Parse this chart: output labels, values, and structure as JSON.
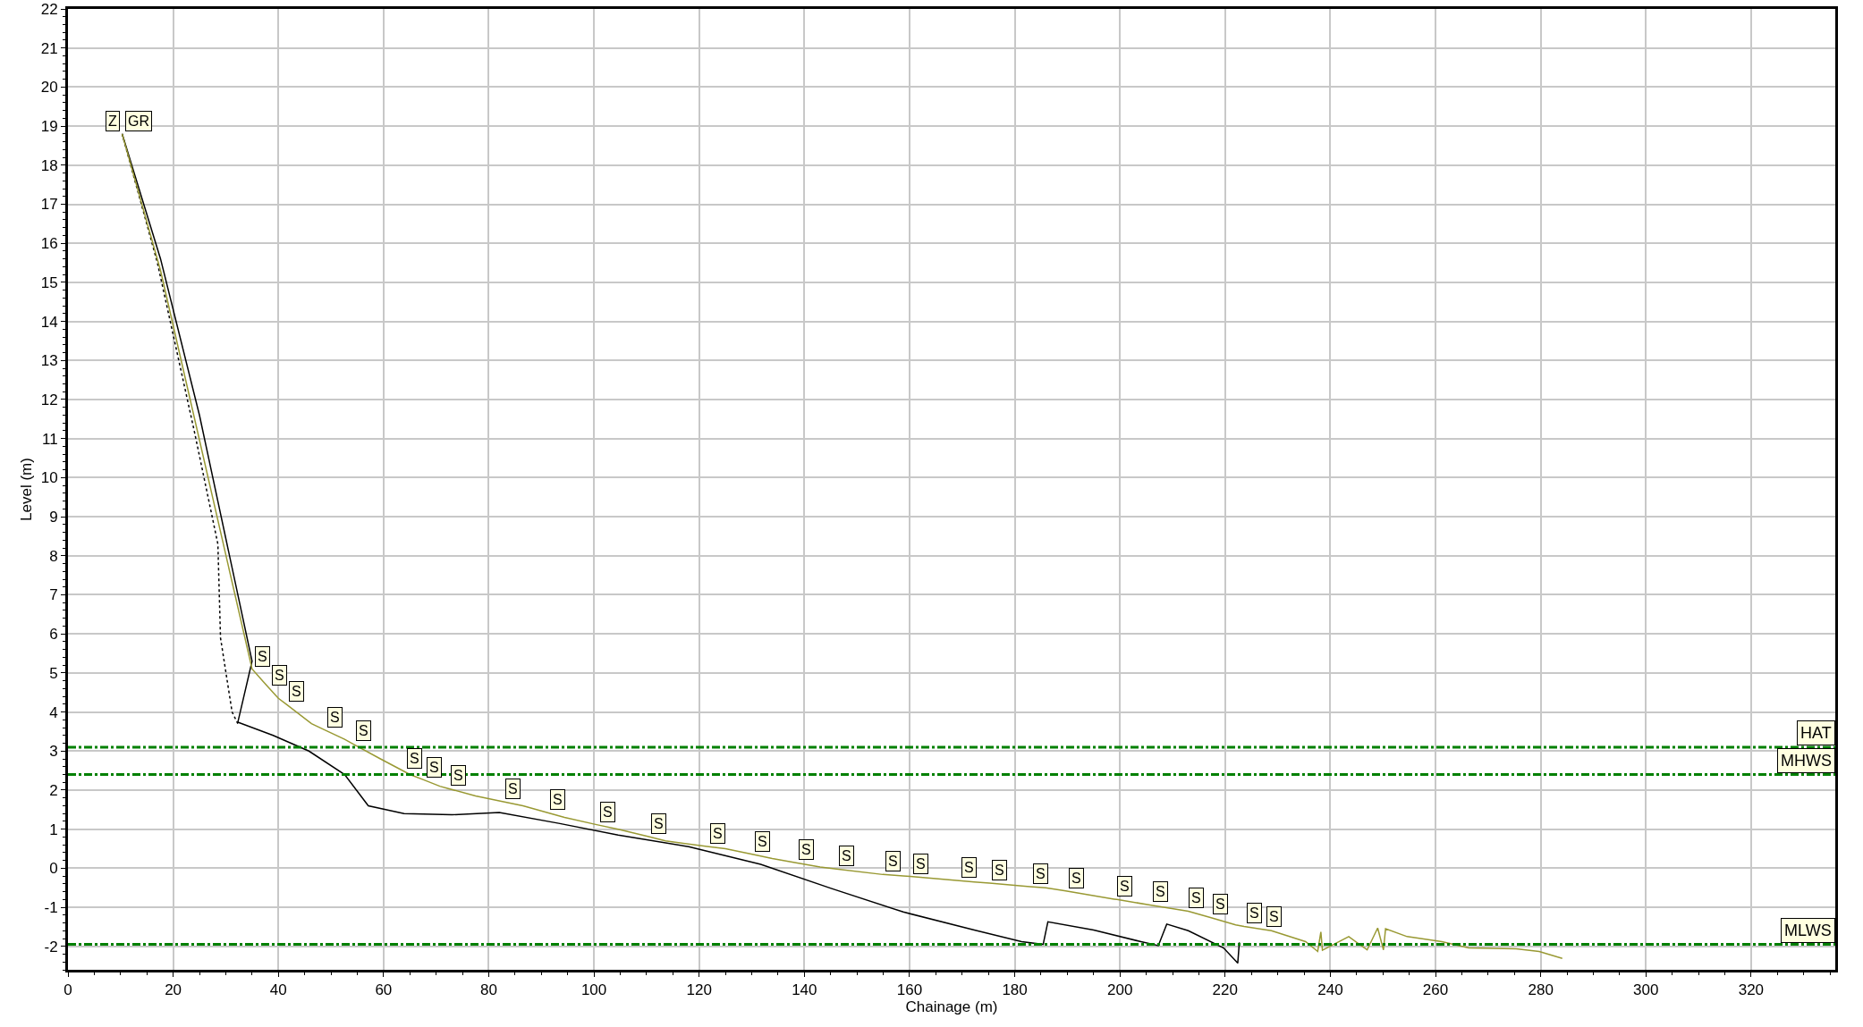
{
  "chart_data": {
    "type": "line",
    "xlabel": "Chainage (m)",
    "ylabel": "Level (m)",
    "xlim": [
      0,
      336
    ],
    "xticks": [
      0,
      20,
      40,
      60,
      80,
      100,
      120,
      140,
      160,
      180,
      200,
      220,
      240,
      260,
      280,
      300,
      320
    ],
    "ylim": [
      -2.6,
      22
    ],
    "yticks": [
      -2,
      -1,
      0,
      1,
      2,
      3,
      4,
      5,
      6,
      7,
      8,
      9,
      10,
      11,
      12,
      13,
      14,
      15,
      16,
      17,
      18,
      19,
      20,
      21,
      22
    ],
    "grid": true,
    "marker": "none",
    "series": [
      {
        "color": "#000000",
        "line_style": "dotted",
        "x": [
          10.3,
          17,
          24,
          28.5,
          29,
          31.2,
          32.3
        ],
        "values": [
          18.8,
          15.5,
          11.2,
          8.3,
          5.9,
          4.0,
          3.7
        ]
      },
      {
        "color": "#000000",
        "line_style": "solid",
        "x": [
          10.3,
          17.6,
          25,
          35,
          32.3,
          39,
          45.8,
          52.6,
          57.1,
          63.9,
          73,
          82,
          93.3,
          104.6,
          118,
          131.7,
          145.2,
          158.8,
          172.3,
          181.3,
          185.4,
          186.3,
          195,
          204,
          207.3,
          208.9,
          213,
          219.7,
          222.4,
          222.7
        ],
        "values": [
          18.8,
          15.6,
          11.6,
          5.3,
          3.74,
          3.4,
          3.0,
          2.4,
          1.6,
          1.4,
          1.37,
          1.43,
          1.15,
          0.85,
          0.55,
          0.1,
          -0.52,
          -1.12,
          -1.58,
          -1.88,
          -1.95,
          -1.37,
          -1.58,
          -1.88,
          -1.98,
          -1.43,
          -1.6,
          -2.04,
          -2.43,
          -1.9
        ]
      },
      {
        "color": "#999933",
        "line_style": "solid",
        "x": [
          10.3,
          17.6,
          35,
          38.3,
          40,
          41.5,
          46.3,
          48.8,
          52.6,
          54.2,
          59.4,
          63.9,
          65,
          67.7,
          70.7,
          72.3,
          77.5,
          82.6,
          86.5,
          91.2,
          94.4,
          100.7,
          104.6,
          110.4,
          113.6,
          121.5,
          125,
          130.1,
          133.9,
          138.4,
          143,
          146.1,
          154.9,
          158.8,
          160.1,
          169.4,
          172.3,
          175.2,
          182.9,
          185.9,
          189.7,
          198.9,
          199.4,
          205.7,
          212.5,
          213,
          217.2,
          222,
          223.6,
          227.4,
          228.8,
          235.3,
          237.6,
          238.2,
          238.5,
          243.5,
          247,
          249,
          250.1,
          250.5,
          254.6,
          261.2,
          266.3,
          275.3,
          279.7,
          284.1
        ],
        "values": [
          18.8,
          15.3,
          5.1,
          4.6,
          4.35,
          4.2,
          3.7,
          3.54,
          3.3,
          3.18,
          2.8,
          2.48,
          2.4,
          2.26,
          2.1,
          2.04,
          1.85,
          1.71,
          1.6,
          1.42,
          1.3,
          1.11,
          1.0,
          0.81,
          0.7,
          0.56,
          0.5,
          0.36,
          0.25,
          0.14,
          0.03,
          -0.02,
          -0.16,
          -0.2,
          -0.21,
          -0.32,
          -0.35,
          -0.38,
          -0.47,
          -0.5,
          -0.58,
          -0.79,
          -0.8,
          -0.94,
          -1.09,
          -1.1,
          -1.26,
          -1.45,
          -1.49,
          -1.57,
          -1.6,
          -1.88,
          -2.13,
          -1.63,
          -2.1,
          -1.75,
          -2.09,
          -1.53,
          -2.09,
          -1.55,
          -1.75,
          -1.88,
          -2.04,
          -2.06,
          -2.13,
          -2.31
        ]
      }
    ],
    "ref_lines": [
      {
        "axis": "y",
        "value": 3.1,
        "label": "HAT",
        "color": "#008000",
        "line_style": "dashed"
      },
      {
        "axis": "y",
        "value": 2.4,
        "label": "MHWS",
        "color": "#008000",
        "line_style": "dashed"
      },
      {
        "axis": "y",
        "value": -1.95,
        "label": "MLWS",
        "color": "#008000",
        "line_style": "dashed"
      }
    ],
    "annotations": [
      {
        "text": "Z",
        "x": 10.3,
        "y": 18.8
      },
      {
        "text": "GR",
        "x": 10.3,
        "y": 18.8
      },
      {
        "text": "S",
        "x": 35,
        "y": 5.1
      },
      {
        "text": "S",
        "x": 38.3,
        "y": 4.6
      },
      {
        "text": "S",
        "x": 41.5,
        "y": 4.2
      },
      {
        "text": "S",
        "x": 48.8,
        "y": 3.54
      },
      {
        "text": "S",
        "x": 54.2,
        "y": 3.18
      },
      {
        "text": "S",
        "x": 63.9,
        "y": 2.48
      },
      {
        "text": "S",
        "x": 67.7,
        "y": 2.26
      },
      {
        "text": "S",
        "x": 72.3,
        "y": 2.04
      },
      {
        "text": "S",
        "x": 82.6,
        "y": 1.71
      },
      {
        "text": "S",
        "x": 91.2,
        "y": 1.42
      },
      {
        "text": "S",
        "x": 100.7,
        "y": 1.11
      },
      {
        "text": "S",
        "x": 110.4,
        "y": 0.81
      },
      {
        "text": "S",
        "x": 121.5,
        "y": 0.56
      },
      {
        "text": "S",
        "x": 130.1,
        "y": 0.36
      },
      {
        "text": "S",
        "x": 138.4,
        "y": 0.14
      },
      {
        "text": "S",
        "x": 146.1,
        "y": -0.02
      },
      {
        "text": "S",
        "x": 154.9,
        "y": -0.16
      },
      {
        "text": "S",
        "x": 160.1,
        "y": -0.21
      },
      {
        "text": "S",
        "x": 169.4,
        "y": -0.32
      },
      {
        "text": "S",
        "x": 175.2,
        "y": -0.38
      },
      {
        "text": "S",
        "x": 182.9,
        "y": -0.47
      },
      {
        "text": "S",
        "x": 189.7,
        "y": -0.58
      },
      {
        "text": "S",
        "x": 198.9,
        "y": -0.79
      },
      {
        "text": "S",
        "x": 205.7,
        "y": -0.94
      },
      {
        "text": "S",
        "x": 212.5,
        "y": -1.09
      },
      {
        "text": "S",
        "x": 217.2,
        "y": -1.26
      },
      {
        "text": "S",
        "x": 223.6,
        "y": -1.49
      },
      {
        "text": "S",
        "x": 227.4,
        "y": -1.57
      }
    ]
  }
}
